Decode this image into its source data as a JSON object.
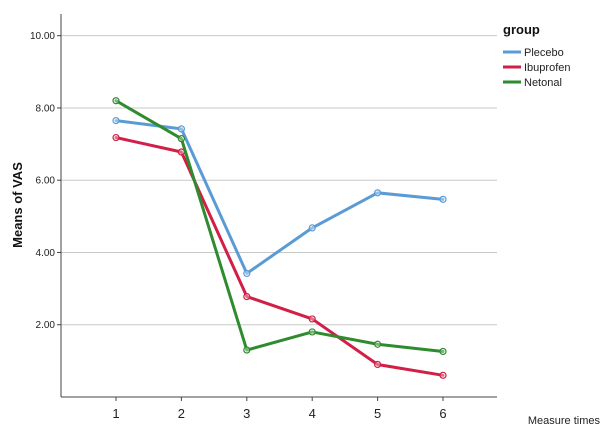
{
  "chart_data": {
    "type": "line",
    "title": "",
    "xlabel": "Measure times",
    "ylabel": "Means of VAS",
    "categories": [
      "1",
      "2",
      "3",
      "4",
      "5",
      "6"
    ],
    "ylim": [
      0,
      10.6
    ],
    "yticks": [
      "2.00",
      "4.00",
      "6.00",
      "8.00",
      "10.00"
    ],
    "ytick_values": [
      2,
      4,
      6,
      8,
      10
    ],
    "grid": "horizontal",
    "legend": {
      "title": "group",
      "position": "top-right"
    },
    "series": [
      {
        "name": "Plecebo",
        "color": "#5b9bd5",
        "values": [
          7.65,
          7.42,
          3.42,
          4.68,
          5.65,
          5.47
        ]
      },
      {
        "name": "Ibuprofen",
        "color": "#d11f47",
        "values": [
          7.18,
          6.78,
          2.78,
          2.16,
          0.9,
          0.6
        ]
      },
      {
        "name": "Netonal",
        "color": "#2e8b2e",
        "values": [
          8.2,
          7.15,
          1.3,
          1.8,
          1.46,
          1.26
        ]
      }
    ]
  }
}
